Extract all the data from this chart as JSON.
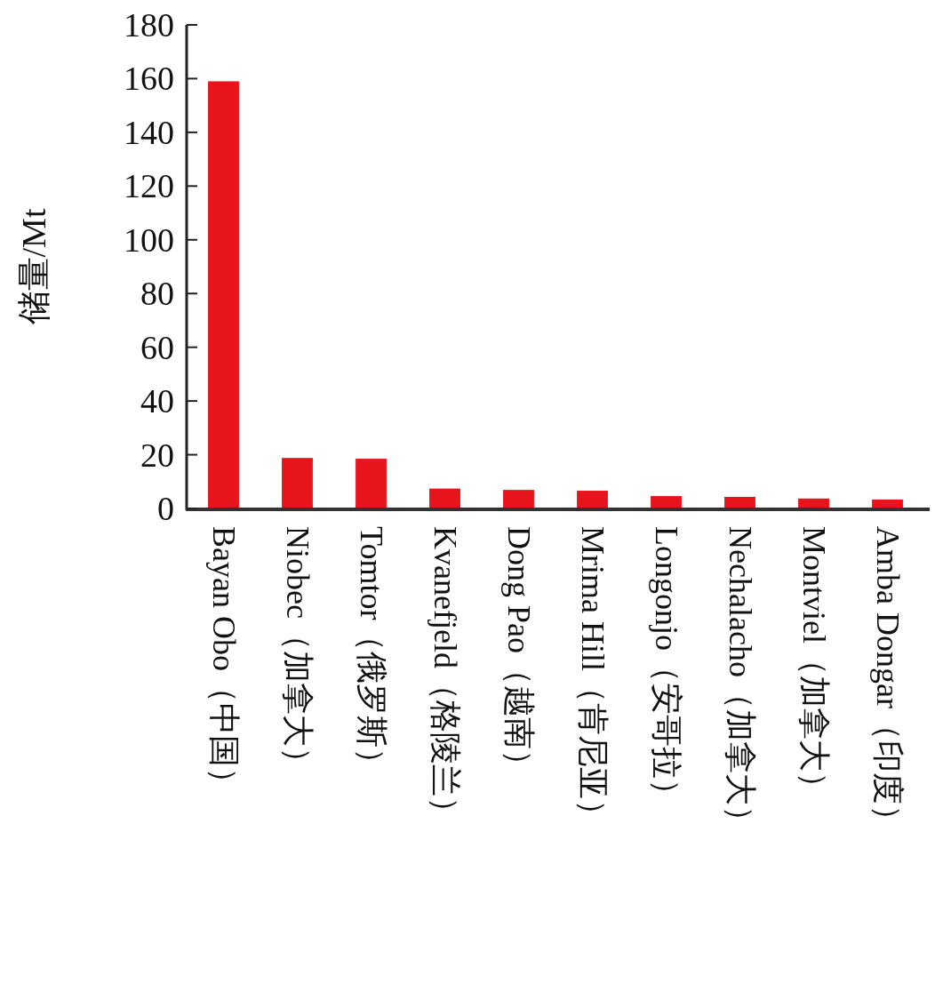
{
  "chart_data": {
    "type": "bar",
    "ylabel": "储量/Mt",
    "categories": [
      "Bayan Obo（中国）",
      "Niobec（加拿大）",
      "Tomtor（俄罗斯）",
      "Kvanefjeld（格陵兰）",
      "Dong Pao（越南）",
      "Mrima Hill（肯尼亚）",
      "Longonjo（安哥拉）",
      "Nechalacho（加拿大）",
      "Montviel（加拿大）",
      "Amba Dongar（印度）"
    ],
    "values": [
      159,
      18.8,
      18.5,
      7.4,
      6.9,
      6.6,
      4.6,
      4.3,
      3.7,
      3.3
    ],
    "color": "#e8141c",
    "ylim": [
      0,
      180
    ],
    "yticks": [
      0,
      20,
      40,
      60,
      80,
      100,
      120,
      140,
      160,
      180
    ],
    "grid": false
  }
}
